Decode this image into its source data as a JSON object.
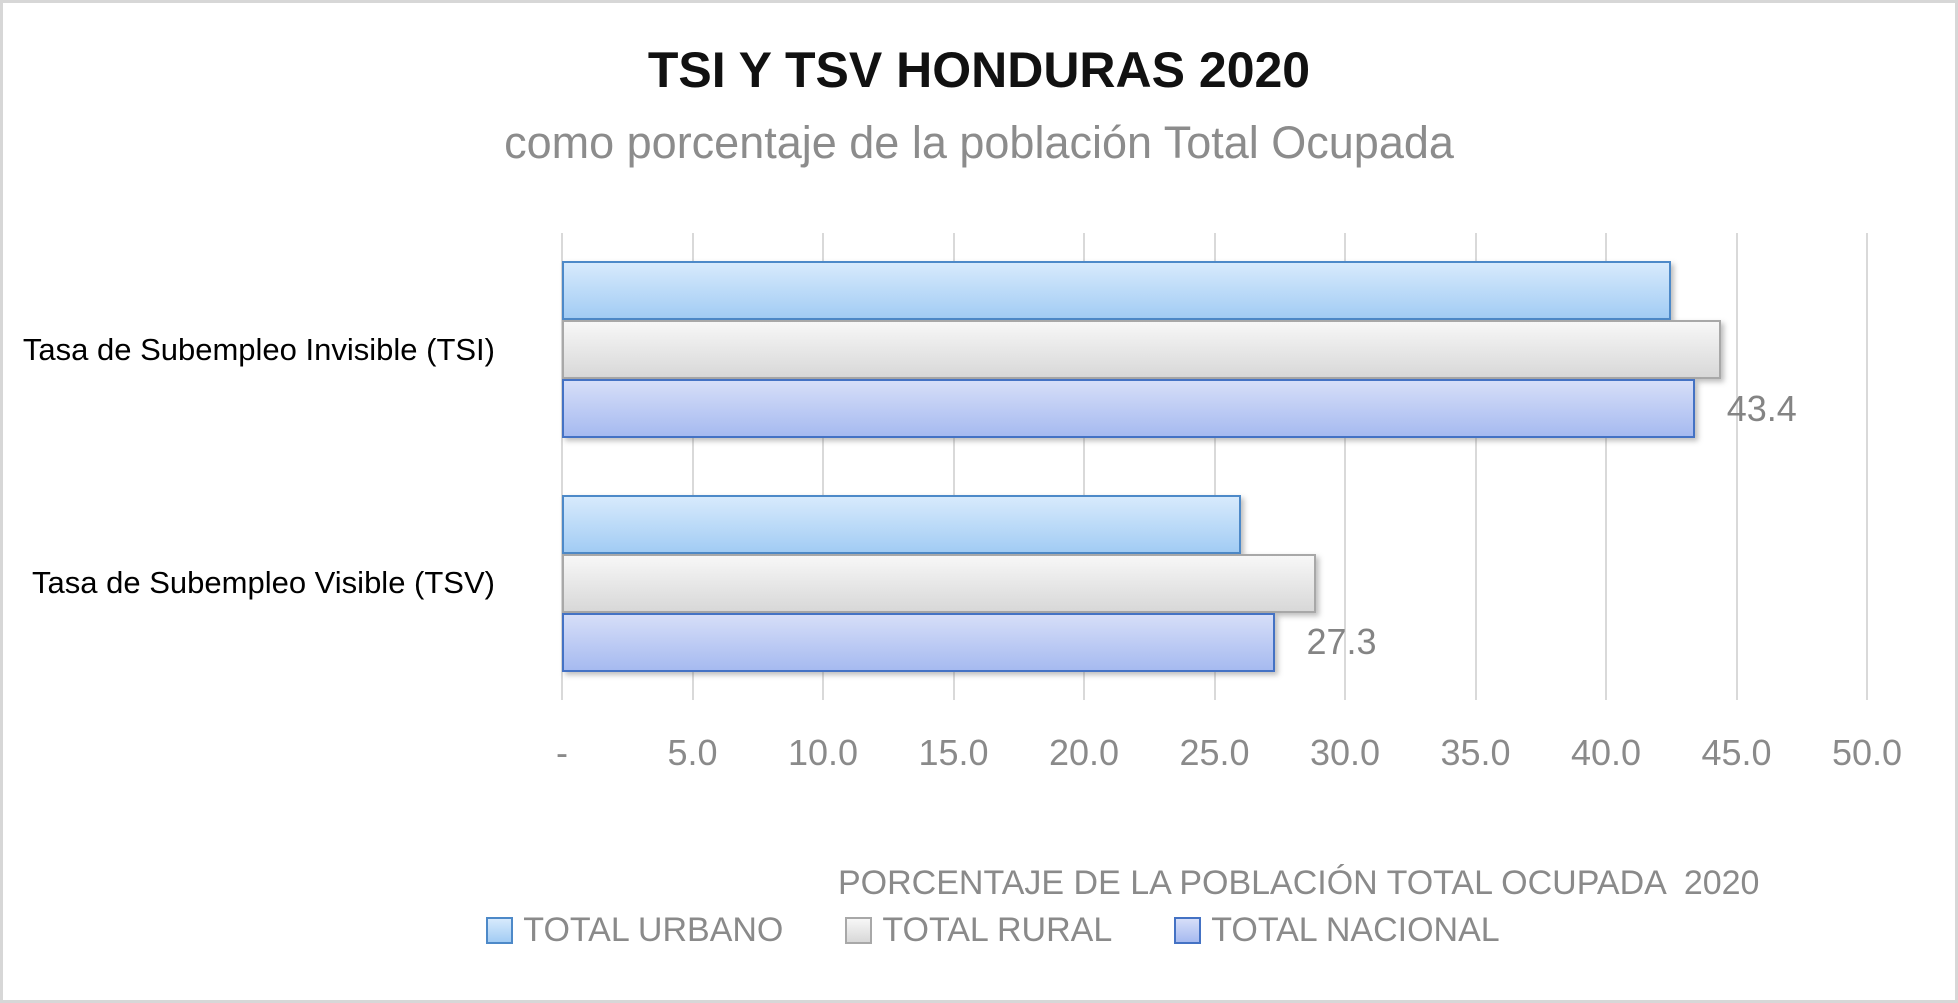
{
  "chart_data": {
    "type": "bar",
    "orientation": "horizontal",
    "title": "TSI Y TSV HONDURAS 2020",
    "subtitle": "como porcentaje de la población Total Ocupada",
    "categories": [
      "Tasa de Subempleo Invisible (TSI)",
      "Tasa de Subempleo Visible (TSV)"
    ],
    "category_keys": [
      "tsi",
      "tsv"
    ],
    "series": [
      {
        "name": "TOTAL URBANO",
        "key": "total-urbano",
        "values": [
          42.5,
          26.0
        ],
        "data_labels": [
          null,
          null
        ],
        "fill_top": "#d7eafc",
        "fill_bottom": "#a2ccf4",
        "border": "#4d89c8"
      },
      {
        "name": "TOTAL RURAL",
        "key": "total-rural",
        "values": [
          44.4,
          28.9
        ],
        "data_labels": [
          null,
          null
        ],
        "fill_top": "#f7f7f7",
        "fill_bottom": "#d8d8d8",
        "border": "#a8a8a8"
      },
      {
        "name": "TOTAL NACIONAL",
        "key": "total-nacional",
        "values": [
          43.4,
          27.3
        ],
        "data_labels": [
          "43.4",
          "27.3"
        ],
        "fill_top": "#d6def8",
        "fill_bottom": "#a6baf0",
        "border": "#4472c4"
      }
    ],
    "x_axis": {
      "min": 0,
      "max": 50,
      "step": 5,
      "tick_labels": [
        "-",
        "5.0",
        "10.0",
        "15.0",
        "20.0",
        "25.0",
        "30.0",
        "35.0",
        "40.0",
        "45.0",
        "50.0"
      ]
    },
    "legend_title": "PORCENTAJE DE LA POBLACIÓN TOTAL OCUPADA  2020",
    "legend_position": "bottom",
    "grid": true,
    "colors": {
      "grid": "#d9d9d9",
      "axis_text": "#8a8a8a",
      "data_label_text": "#848484",
      "category_text": "#000000",
      "title_text": "#111111",
      "subtitle_text": "#8c8c8c",
      "canvas_border": "#d7d7d7"
    }
  }
}
